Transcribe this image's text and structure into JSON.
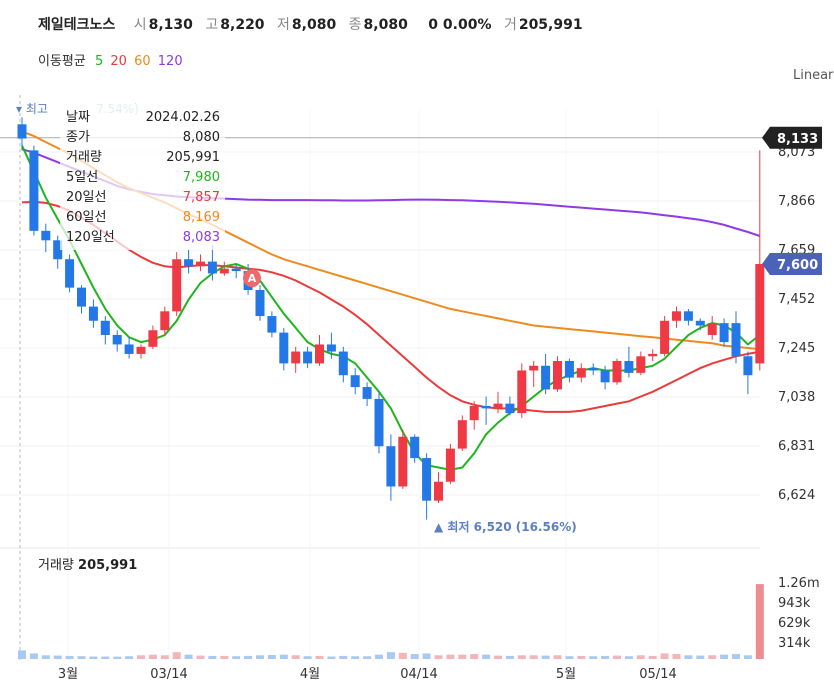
{
  "header": {
    "name": "제일테크노스",
    "open_label": "시",
    "open": "8,130",
    "high_label": "고",
    "high": "8,220",
    "low_label": "저",
    "low": "8,080",
    "close_label": "종",
    "close": "8,080",
    "change": "0 0.00%",
    "vol_label": "거",
    "volume": "205,991"
  },
  "ma_legend": {
    "title": "이동평균",
    "p5": "5",
    "p20": "20",
    "p60": "60",
    "p120": "120"
  },
  "scale_mode": "Linear",
  "tooltip": {
    "rows": [
      {
        "label": "날짜",
        "value": "2024.02.26"
      },
      {
        "label": "종가",
        "value": "8,080"
      },
      {
        "label": "거래량",
        "value": "205,991"
      },
      {
        "label": "5일선",
        "value": "7,980"
      },
      {
        "label": "20일선",
        "value": "7,857"
      },
      {
        "label": "60일선",
        "value": "8,169"
      },
      {
        "label": "120일선",
        "value": "8,083"
      }
    ]
  },
  "max_marker": "▾ 최고",
  "max_marker_tail": "7.54%)",
  "min_marker": "▲ 최저 6,520 (16.56%)",
  "price_badges": {
    "ref": "8,133",
    "current": "7,600"
  },
  "event_marker": "A",
  "volume_label": "거래량",
  "volume_value": "205,991",
  "colors": {
    "up": "#ef3a45",
    "down": "#2477e6",
    "ma5": "#1fb51f",
    "ma20": "#ea3a3a",
    "ma60": "#ef8a1f",
    "ma120": "#8d3be3"
  },
  "chart_data": {
    "type": "candlestick",
    "y_ticks": [
      "8,073",
      "7,866",
      "7,659",
      "7,452",
      "7,245",
      "7,038",
      "6,831",
      "6,624"
    ],
    "y_range": [
      6520,
      8220
    ],
    "volume_ticks": [
      "1.26m",
      "943k",
      "629k",
      "314k"
    ],
    "x_ticks": [
      "3월",
      "03/14",
      "4월",
      "04/14",
      "5월",
      "05/14"
    ],
    "candles": [
      {
        "o": 8190,
        "h": 8220,
        "l": 8080,
        "c": 8130
      },
      {
        "o": 8080,
        "h": 8100,
        "l": 7720,
        "c": 7740
      },
      {
        "o": 7740,
        "h": 7770,
        "l": 7650,
        "c": 7700
      },
      {
        "o": 7700,
        "h": 7720,
        "l": 7580,
        "c": 7620
      },
      {
        "o": 7620,
        "h": 7640,
        "l": 7480,
        "c": 7500
      },
      {
        "o": 7500,
        "h": 7510,
        "l": 7390,
        "c": 7420
      },
      {
        "o": 7420,
        "h": 7450,
        "l": 7330,
        "c": 7360
      },
      {
        "o": 7360,
        "h": 7380,
        "l": 7260,
        "c": 7300
      },
      {
        "o": 7300,
        "h": 7320,
        "l": 7230,
        "c": 7260
      },
      {
        "o": 7260,
        "h": 7290,
        "l": 7200,
        "c": 7220
      },
      {
        "o": 7220,
        "h": 7260,
        "l": 7200,
        "c": 7250
      },
      {
        "o": 7250,
        "h": 7340,
        "l": 7240,
        "c": 7320
      },
      {
        "o": 7320,
        "h": 7420,
        "l": 7300,
        "c": 7400
      },
      {
        "o": 7400,
        "h": 7650,
        "l": 7380,
        "c": 7620
      },
      {
        "o": 7620,
        "h": 7660,
        "l": 7560,
        "c": 7590
      },
      {
        "o": 7590,
        "h": 7640,
        "l": 7570,
        "c": 7610
      },
      {
        "o": 7610,
        "h": 7680,
        "l": 7530,
        "c": 7560
      },
      {
        "o": 7560,
        "h": 7610,
        "l": 7550,
        "c": 7580
      },
      {
        "o": 7580,
        "h": 7600,
        "l": 7540,
        "c": 7570
      },
      {
        "o": 7570,
        "h": 7600,
        "l": 7470,
        "c": 7490
      },
      {
        "o": 7490,
        "h": 7510,
        "l": 7360,
        "c": 7380
      },
      {
        "o": 7380,
        "h": 7400,
        "l": 7290,
        "c": 7310
      },
      {
        "o": 7310,
        "h": 7330,
        "l": 7150,
        "c": 7180
      },
      {
        "o": 7180,
        "h": 7250,
        "l": 7140,
        "c": 7230
      },
      {
        "o": 7230,
        "h": 7250,
        "l": 7160,
        "c": 7180
      },
      {
        "o": 7180,
        "h": 7300,
        "l": 7170,
        "c": 7260
      },
      {
        "o": 7260,
        "h": 7310,
        "l": 7200,
        "c": 7230
      },
      {
        "o": 7230,
        "h": 7250,
        "l": 7100,
        "c": 7130
      },
      {
        "o": 7130,
        "h": 7160,
        "l": 7050,
        "c": 7080
      },
      {
        "o": 7080,
        "h": 7100,
        "l": 7000,
        "c": 7030
      },
      {
        "o": 7030,
        "h": 7060,
        "l": 6800,
        "c": 6830
      },
      {
        "o": 6830,
        "h": 6880,
        "l": 6600,
        "c": 6660
      },
      {
        "o": 6660,
        "h": 6900,
        "l": 6650,
        "c": 6870
      },
      {
        "o": 6870,
        "h": 6880,
        "l": 6760,
        "c": 6780
      },
      {
        "o": 6780,
        "h": 6800,
        "l": 6520,
        "c": 6600
      },
      {
        "o": 6600,
        "h": 6720,
        "l": 6590,
        "c": 6680
      },
      {
        "o": 6680,
        "h": 6840,
        "l": 6670,
        "c": 6820
      },
      {
        "o": 6820,
        "h": 6960,
        "l": 6810,
        "c": 6940
      },
      {
        "o": 6940,
        "h": 7020,
        "l": 6900,
        "c": 7000
      },
      {
        "o": 7000,
        "h": 7040,
        "l": 6920,
        "c": 6990
      },
      {
        "o": 6990,
        "h": 7060,
        "l": 6970,
        "c": 7010
      },
      {
        "o": 7010,
        "h": 7040,
        "l": 6960,
        "c": 6970
      },
      {
        "o": 6970,
        "h": 7180,
        "l": 6950,
        "c": 7150
      },
      {
        "o": 7150,
        "h": 7190,
        "l": 7080,
        "c": 7170
      },
      {
        "o": 7170,
        "h": 7220,
        "l": 7050,
        "c": 7070
      },
      {
        "o": 7070,
        "h": 7210,
        "l": 7060,
        "c": 7190
      },
      {
        "o": 7190,
        "h": 7200,
        "l": 7100,
        "c": 7120
      },
      {
        "o": 7120,
        "h": 7180,
        "l": 7100,
        "c": 7160
      },
      {
        "o": 7160,
        "h": 7180,
        "l": 7130,
        "c": 7150
      },
      {
        "o": 7150,
        "h": 7170,
        "l": 7070,
        "c": 7100
      },
      {
        "o": 7100,
        "h": 7200,
        "l": 7090,
        "c": 7190
      },
      {
        "o": 7190,
        "h": 7250,
        "l": 7120,
        "c": 7140
      },
      {
        "o": 7140,
        "h": 7230,
        "l": 7130,
        "c": 7210
      },
      {
        "o": 7210,
        "h": 7240,
        "l": 7190,
        "c": 7220
      },
      {
        "o": 7220,
        "h": 7380,
        "l": 7210,
        "c": 7360
      },
      {
        "o": 7360,
        "h": 7420,
        "l": 7330,
        "c": 7400
      },
      {
        "o": 7400,
        "h": 7410,
        "l": 7340,
        "c": 7360
      },
      {
        "o": 7360,
        "h": 7370,
        "l": 7320,
        "c": 7340
      },
      {
        "o": 7300,
        "h": 7380,
        "l": 7280,
        "c": 7350
      },
      {
        "o": 7350,
        "h": 7370,
        "l": 7250,
        "c": 7270
      },
      {
        "o": 7350,
        "h": 7400,
        "l": 7180,
        "c": 7210
      },
      {
        "o": 7210,
        "h": 7230,
        "l": 7050,
        "c": 7130
      },
      {
        "o": 7180,
        "h": 8080,
        "l": 7150,
        "c": 7600
      }
    ],
    "ma5": [
      8100,
      7990,
      7880,
      7790,
      7700,
      7600,
      7500,
      7410,
      7340,
      7290,
      7270,
      7280,
      7300,
      7360,
      7450,
      7520,
      7560,
      7590,
      7600,
      7580,
      7530,
      7460,
      7390,
      7330,
      7270,
      7240,
      7220,
      7210,
      7180,
      7120,
      7060,
      6990,
      6890,
      6800,
      6750,
      6740,
      6730,
      6740,
      6800,
      6880,
      6930,
      6970,
      7000,
      7040,
      7080,
      7110,
      7130,
      7150,
      7160,
      7150,
      7150,
      7150,
      7160,
      7170,
      7200,
      7250,
      7300,
      7330,
      7350,
      7340,
      7310,
      7260,
      7300
    ],
    "ma20": [
      7860,
      7862,
      7858,
      7845,
      7825,
      7795,
      7765,
      7730,
      7695,
      7660,
      7630,
      7605,
      7590,
      7585,
      7590,
      7595,
      7595,
      7590,
      7585,
      7580,
      7575,
      7565,
      7550,
      7530,
      7505,
      7480,
      7450,
      7420,
      7385,
      7345,
      7300,
      7255,
      7210,
      7165,
      7120,
      7080,
      7045,
      7020,
      7005,
      6995,
      6990,
      6990,
      6985,
      6980,
      6975,
      6975,
      6975,
      6980,
      6990,
      7000,
      7010,
      7020,
      7040,
      7060,
      7085,
      7110,
      7135,
      7160,
      7180,
      7195,
      7210,
      7220,
      7230
    ],
    "ma60": [
      8160,
      8140,
      8115,
      8090,
      8065,
      8035,
      8005,
      7975,
      7945,
      7920,
      7900,
      7880,
      7860,
      7835,
      7810,
      7790,
      7765,
      7740,
      7715,
      7690,
      7665,
      7640,
      7620,
      7605,
      7590,
      7575,
      7560,
      7545,
      7530,
      7515,
      7500,
      7485,
      7470,
      7455,
      7440,
      7425,
      7410,
      7400,
      7390,
      7380,
      7370,
      7360,
      7350,
      7340,
      7335,
      7330,
      7325,
      7320,
      7315,
      7310,
      7305,
      7300,
      7295,
      7290,
      7285,
      7280,
      7275,
      7270,
      7265,
      7255,
      7250,
      7245,
      7240
    ],
    "ma120": [
      8085,
      8070,
      8050,
      8030,
      8010,
      7990,
      7970,
      7950,
      7930,
      7915,
      7905,
      7895,
      7890,
      7885,
      7882,
      7880,
      7878,
      7876,
      7874,
      7872,
      7871,
      7870,
      7870,
      7870,
      7870,
      7869,
      7869,
      7868,
      7868,
      7868,
      7869,
      7870,
      7871,
      7872,
      7872,
      7871,
      7870,
      7869,
      7867,
      7865,
      7863,
      7860,
      7857,
      7854,
      7850,
      7846,
      7842,
      7838,
      7834,
      7830,
      7826,
      7822,
      7818,
      7812,
      7806,
      7800,
      7793,
      7786,
      7777,
      7765,
      7750,
      7735,
      7718
    ],
    "volume": [
      140,
      90,
      60,
      55,
      50,
      45,
      40,
      40,
      38,
      45,
      60,
      70,
      60,
      110,
      70,
      55,
      50,
      50,
      45,
      50,
      60,
      65,
      70,
      60,
      45,
      50,
      40,
      50,
      45,
      45,
      70,
      110,
      100,
      80,
      90,
      60,
      70,
      70,
      80,
      70,
      55,
      50,
      60,
      60,
      55,
      60,
      45,
      50,
      45,
      50,
      55,
      45,
      60,
      50,
      90,
      80,
      60,
      55,
      60,
      70,
      80,
      60,
      1210
    ]
  }
}
